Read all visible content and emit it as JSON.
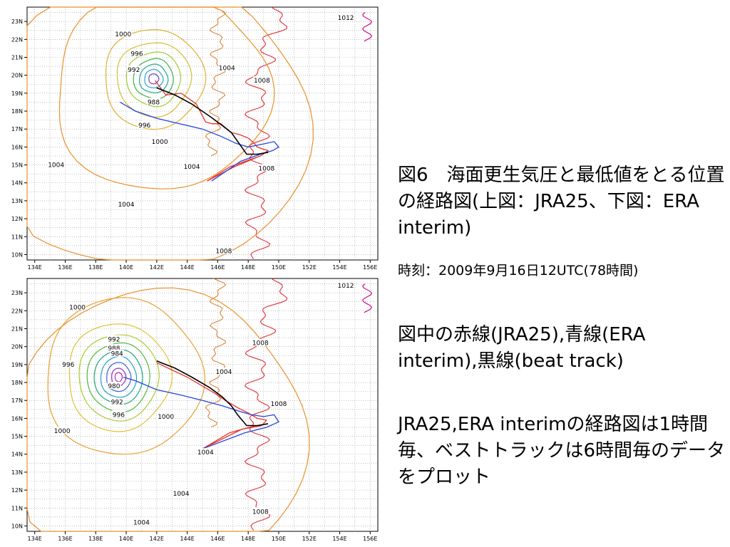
{
  "caption": {
    "title": "図6　海面更生気圧と最低値をとる位置の経路図(上図：JRA25、下図：ERA interim)",
    "time": "時刻：2009年9月16日12UTC(78時間)",
    "legend": "図中の赤線(JRA25),青線(ERA interim),黒線(beat track)",
    "note": "JRA25,ERA interimの経路図は1時間毎、ベストトラックは6時間毎のデータをプロット"
  },
  "colors": {
    "jra25": "#e8332a",
    "era_interim": "#2244dd",
    "best_track": "#000000",
    "coast": "#e0303a",
    "land_coast": "#d67a2a",
    "magenta": "#d4148a"
  },
  "chart_data": [
    {
      "type": "contour_map",
      "x_ticks": [
        "134E",
        "136E",
        "138E",
        "140E",
        "142E",
        "144E",
        "146E",
        "148E",
        "150E",
        "152E",
        "154E",
        "156E"
      ],
      "y_ticks": [
        "23N",
        "22N",
        "21N",
        "20N",
        "19N",
        "18N",
        "17N",
        "16N",
        "15N",
        "14N",
        "13N",
        "12N",
        "11N",
        "10N"
      ],
      "xlim": [
        133.5,
        156.5
      ],
      "ylim": [
        9.7,
        23.8
      ],
      "grid": true,
      "contour_labels": [
        {
          "text": "1012",
          "lon": 154.4,
          "lat": 23.2
        },
        {
          "text": "1000",
          "lon": 139.8,
          "lat": 22.3
        },
        {
          "text": "996",
          "lon": 140.7,
          "lat": 21.2
        },
        {
          "text": "992",
          "lon": 140.5,
          "lat": 20.3
        },
        {
          "text": "1004",
          "lon": 146.6,
          "lat": 20.4
        },
        {
          "text": "1008",
          "lon": 148.9,
          "lat": 19.7
        },
        {
          "text": "988",
          "lon": 141.8,
          "lat": 18.5
        },
        {
          "text": "996",
          "lon": 141.2,
          "lat": 17.2
        },
        {
          "text": "1000",
          "lon": 142.2,
          "lat": 16.3
        },
        {
          "text": "1004",
          "lon": 135.4,
          "lat": 15.0
        },
        {
          "text": "1004",
          "lon": 144.3,
          "lat": 14.9
        },
        {
          "text": "1008",
          "lon": 149.2,
          "lat": 14.8
        },
        {
          "text": "1004",
          "lon": 140.0,
          "lat": 12.8
        },
        {
          "text": "1008",
          "lon": 146.4,
          "lat": 10.2
        }
      ],
      "series": [
        {
          "name": "JRA25",
          "lon": [
            141.9,
            142.6,
            143.6,
            144.6,
            145.2,
            145.6,
            146.2,
            146.9,
            147.4,
            148.0,
            148.4,
            148.6,
            148.9,
            149.3,
            148.8,
            146.8,
            145.3,
            147.1,
            148.5
          ],
          "lat": [
            19.7,
            18.9,
            19.0,
            18.4,
            17.4,
            17.3,
            17.3,
            16.8,
            16.7,
            16.5,
            16.2,
            16.0,
            15.9,
            15.8,
            15.5,
            14.9,
            14.1,
            14.9,
            15.4
          ]
        },
        {
          "name": "ERA interim",
          "lon": [
            139.6,
            140.6,
            142.0,
            143.5,
            145.0,
            146.2,
            147.2,
            148.0,
            148.6,
            149.2,
            149.7,
            150.0,
            149.6,
            148.8,
            147.5,
            145.6
          ],
          "lat": [
            18.5,
            18.0,
            17.6,
            17.3,
            17.0,
            16.6,
            16.2,
            16.0,
            16.1,
            16.2,
            16.3,
            16.0,
            15.8,
            15.6,
            15.2,
            14.1
          ]
        },
        {
          "name": "beat track",
          "lon": [
            142.0,
            143.2,
            144.3,
            145.5,
            146.3,
            146.9,
            147.4,
            147.9,
            148.6,
            149.3
          ],
          "lat": [
            19.3,
            18.9,
            18.4,
            17.7,
            17.2,
            16.8,
            16.2,
            15.6,
            15.6,
            15.7
          ]
        }
      ],
      "pressure_center": {
        "lon": 141.8,
        "lat": 19.8
      }
    },
    {
      "type": "contour_map",
      "x_ticks": [
        "134E",
        "136E",
        "138E",
        "140E",
        "142E",
        "144E",
        "146E",
        "148E",
        "150E",
        "152E",
        "154E",
        "156E"
      ],
      "y_ticks": [
        "23N",
        "22N",
        "21N",
        "20N",
        "19N",
        "18N",
        "17N",
        "16N",
        "15N",
        "14N",
        "13N",
        "12N",
        "11N",
        "10N"
      ],
      "xlim": [
        133.5,
        156.5
      ],
      "ylim": [
        9.7,
        23.8
      ],
      "grid": true,
      "contour_labels": [
        {
          "text": "1012",
          "lon": 154.4,
          "lat": 23.4
        },
        {
          "text": "1000",
          "lon": 136.8,
          "lat": 22.2
        },
        {
          "text": "992",
          "lon": 139.2,
          "lat": 20.4
        },
        {
          "text": "988",
          "lon": 139.2,
          "lat": 19.9
        },
        {
          "text": "984",
          "lon": 139.4,
          "lat": 19.6
        },
        {
          "text": "996",
          "lon": 136.2,
          "lat": 19.0
        },
        {
          "text": "980",
          "lon": 139.2,
          "lat": 17.8
        },
        {
          "text": "992",
          "lon": 139.4,
          "lat": 16.9
        },
        {
          "text": "996",
          "lon": 139.5,
          "lat": 16.2
        },
        {
          "text": "1000",
          "lon": 142.6,
          "lat": 16.1
        },
        {
          "text": "1000",
          "lon": 135.8,
          "lat": 15.3
        },
        {
          "text": "1004",
          "lon": 146.4,
          "lat": 18.6
        },
        {
          "text": "1008",
          "lon": 148.8,
          "lat": 20.2
        },
        {
          "text": "1008",
          "lon": 150.0,
          "lat": 16.8
        },
        {
          "text": "1004",
          "lon": 145.2,
          "lat": 14.1
        },
        {
          "text": "1004",
          "lon": 143.6,
          "lat": 11.8
        },
        {
          "text": "1008",
          "lon": 148.8,
          "lat": 10.8
        },
        {
          "text": "1004",
          "lon": 141.0,
          "lat": 10.2
        }
      ],
      "series": [
        {
          "name": "JRA25",
          "lon": [
            142.0,
            143.0,
            144.0,
            145.0,
            145.8,
            146.5,
            147.3,
            148.0,
            148.6,
            149.2,
            148.9,
            147.6,
            145.0,
            146.8,
            148.5
          ],
          "lat": [
            19.1,
            18.7,
            18.3,
            17.8,
            17.4,
            17.0,
            16.6,
            16.3,
            16.0,
            15.9,
            15.6,
            15.4,
            14.3,
            15.2,
            15.6
          ]
        },
        {
          "name": "ERA interim",
          "lon": [
            139.8,
            140.6,
            142.0,
            143.6,
            145.0,
            146.3,
            147.4,
            148.2,
            149.0,
            149.7,
            150.0,
            149.2,
            147.8,
            145.0
          ],
          "lat": [
            18.3,
            18.1,
            17.6,
            17.3,
            17.0,
            16.7,
            16.4,
            16.2,
            16.1,
            16.2,
            15.8,
            15.5,
            15.2,
            14.3
          ]
        },
        {
          "name": "beat track",
          "lon": [
            142.0,
            143.2,
            144.3,
            145.5,
            146.3,
            146.9,
            147.3,
            147.9,
            148.6,
            149.3
          ],
          "lat": [
            19.2,
            18.8,
            18.3,
            17.7,
            17.2,
            16.7,
            16.2,
            15.6,
            15.6,
            15.7
          ]
        }
      ],
      "pressure_center": {
        "lon": 139.5,
        "lat": 18.3
      }
    }
  ]
}
